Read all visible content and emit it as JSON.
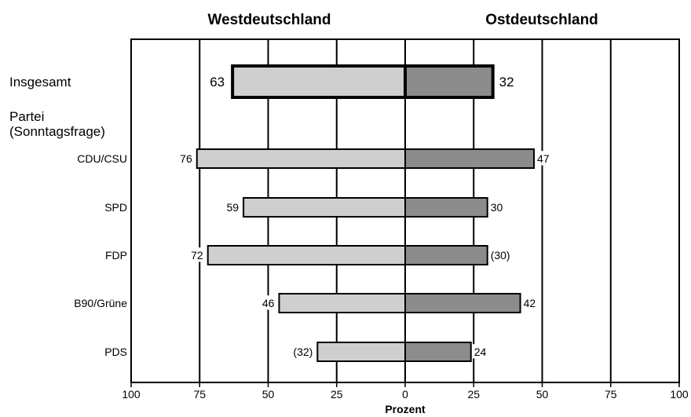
{
  "chart_data": {
    "type": "bar",
    "orientation": "horizontal-diverging",
    "panels": [
      "Westdeutschland",
      "Ostdeutschland"
    ],
    "xlabel": "Prozent",
    "xlim": [
      0,
      100
    ],
    "xticks": [
      "100",
      "75",
      "50",
      "25",
      "0",
      "25",
      "50",
      "75",
      "100"
    ],
    "group_label": "Partei\n(Sonntagsfrage)",
    "categories": [
      "Insgesamt",
      "CDU/CSU",
      "SPD",
      "FDP",
      "B90/Grüne",
      "PDS"
    ],
    "series": [
      {
        "name": "Westdeutschland",
        "color": "#cfcfcf",
        "values": [
          63,
          76,
          59,
          72,
          46,
          32
        ],
        "labels": [
          "63",
          "76",
          "59",
          "72",
          "46",
          "(32)"
        ]
      },
      {
        "name": "Ostdeutschland",
        "color": "#8c8c8c",
        "values": [
          32,
          47,
          30,
          30,
          42,
          24
        ],
        "labels": [
          "32",
          "47",
          "30",
          "(30)",
          "42",
          "24"
        ]
      }
    ],
    "grid": true
  }
}
